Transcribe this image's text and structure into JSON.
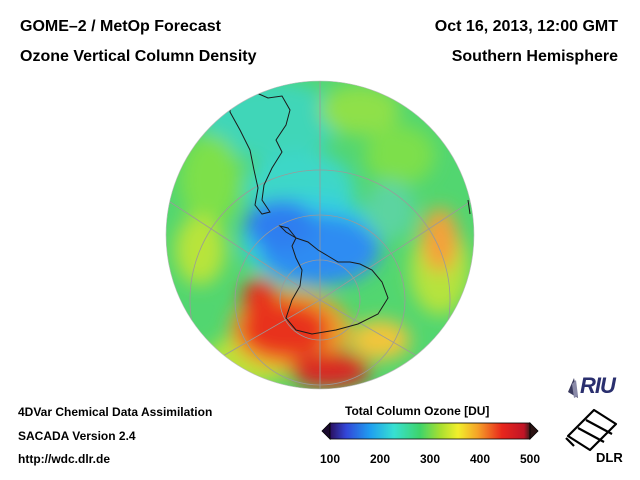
{
  "header": {
    "title_left_1": "GOME–2 / MetOp Forecast",
    "title_left_2": "Ozone Vertical Column Density",
    "title_right_1": "Oct 16, 2013, 12:00 GMT",
    "title_right_2": "Southern Hemisphere"
  },
  "footer": {
    "line1": "4DVar Chemical Data Assimilation",
    "line2": "SACADA Version 2.4",
    "line3": "http://wdc.dlr.de"
  },
  "colorbar": {
    "title": "Total Column Ozone [DU]",
    "min": 100,
    "max": 500,
    "ticks": [
      "100",
      "200",
      "300",
      "400",
      "500"
    ],
    "stops": [
      "#2a0f5e",
      "#3346d8",
      "#1f9ef0",
      "#37e0d2",
      "#3ed46a",
      "#a6df31",
      "#f2ef2c",
      "#f5a128",
      "#e8261c",
      "#c01426",
      "#3a1c1c"
    ]
  },
  "map": {
    "projection": "orthographic, south polar view",
    "colors": {
      "ocean_base": "#52d670",
      "ozone_hole": "#2f8cf2",
      "high_ozone": "#e8321f",
      "land_outline": "#1a1a1a",
      "graticule": "#9a9a9a"
    }
  },
  "logos": {
    "riu": "RIU",
    "dlr": "DLR"
  }
}
